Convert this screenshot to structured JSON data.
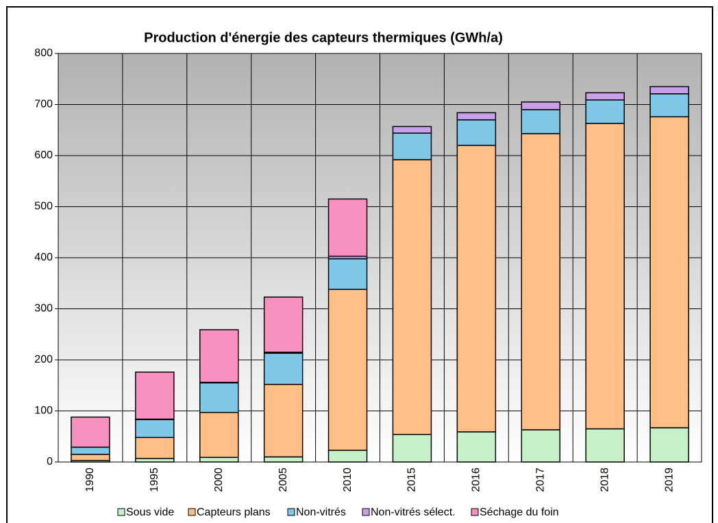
{
  "chart_data": {
    "type": "stacked_bar",
    "title": "Production d'énergie des capteurs thermiques (GWh/a)",
    "categories": [
      "1990",
      "1995",
      "2000",
      "2005",
      "2010",
      "2015",
      "2016",
      "2017",
      "2018",
      "2019"
    ],
    "series": [
      {
        "name": "Sous vide",
        "color": "#c6f0c6",
        "values": [
          3,
          7,
          9,
          10,
          23,
          54,
          59,
          63,
          65,
          67
        ]
      },
      {
        "name": "Capteurs plans",
        "color": "#ffbf87",
        "values": [
          12,
          41,
          88,
          142,
          315,
          538,
          561,
          580,
          598,
          609
        ]
      },
      {
        "name": "Non-vitrés",
        "color": "#80c8e8",
        "values": [
          14,
          35,
          58,
          61,
          60,
          52,
          50,
          47,
          46,
          45
        ]
      },
      {
        "name": "Non-vitrés sélect.",
        "color": "#c8a0e8",
        "values": [
          0,
          1,
          1,
          2,
          5,
          13,
          14,
          15,
          14,
          14
        ]
      },
      {
        "name": "Séchage du foin",
        "color": "#f890c0",
        "values": [
          59,
          92,
          103,
          108,
          112,
          0,
          0,
          0,
          0,
          0
        ]
      }
    ],
    "ylim": [
      0,
      800
    ],
    "yticks": [
      0,
      100,
      200,
      300,
      400,
      500,
      600,
      700,
      800
    ],
    "grid": true
  }
}
